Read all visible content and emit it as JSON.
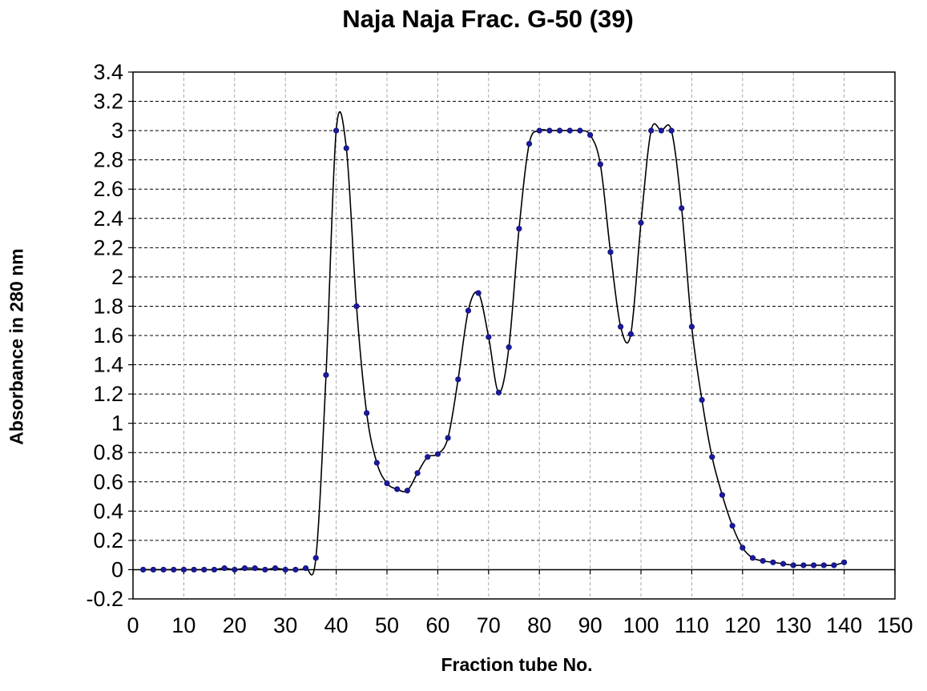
{
  "chart_data": {
    "type": "line",
    "title": "Naja Naja Frac. G-50 (39)",
    "xlabel": "Fraction tube No.",
    "ylabel": "Absorbance in 280 nm",
    "xlim": [
      0,
      150
    ],
    "ylim": [
      -0.2,
      3.4
    ],
    "x_ticks": [
      0,
      10,
      20,
      30,
      40,
      50,
      60,
      70,
      80,
      90,
      100,
      110,
      120,
      130,
      140,
      150
    ],
    "y_ticks": [
      -0.2,
      0,
      0.2,
      0.4,
      0.6,
      0.8,
      1,
      1.2,
      1.4,
      1.6,
      1.8,
      2,
      2.2,
      2.4,
      2.6,
      2.8,
      3,
      3.2,
      3.4
    ],
    "y_tick_labels": [
      "-0.2",
      "0",
      "0.2",
      "0.4",
      "0.6",
      "0.8",
      "1",
      "1.2",
      "1.4",
      "1.6",
      "1.8",
      "2",
      "2.2",
      "2.4",
      "2.6",
      "2.8",
      "3",
      "3.2",
      "3.4"
    ],
    "grid": true,
    "line_color": "#000000",
    "marker_color": "#1a1aa0",
    "series": [
      {
        "x": [
          2,
          4,
          6,
          8,
          10,
          12,
          14,
          16,
          18,
          20,
          22,
          24,
          26,
          28,
          30,
          32,
          34,
          36,
          38,
          40,
          42,
          44,
          46,
          48,
          50,
          52,
          54,
          56,
          58,
          60,
          62,
          64,
          66,
          68,
          70,
          72,
          74,
          76,
          78,
          80,
          82,
          84,
          86,
          88,
          90,
          92,
          94,
          96,
          98,
          100,
          102,
          104,
          106,
          108,
          110,
          112,
          114,
          116,
          118,
          120,
          122,
          124,
          126,
          128,
          130,
          132,
          134,
          136,
          138,
          140
        ],
        "y": [
          0,
          0,
          0,
          0,
          0,
          0,
          0,
          0,
          0.01,
          0,
          0.01,
          0.01,
          0,
          0.01,
          0,
          0,
          0.01,
          0.08,
          1.33,
          3.0,
          2.88,
          1.8,
          1.07,
          0.73,
          0.59,
          0.55,
          0.54,
          0.66,
          0.77,
          0.79,
          0.9,
          1.3,
          1.77,
          1.89,
          1.59,
          1.21,
          1.52,
          2.33,
          2.91,
          3.0,
          3.0,
          3.0,
          3.0,
          3.0,
          2.97,
          2.77,
          2.17,
          1.66,
          1.61,
          2.37,
          3.0,
          3.0,
          3.0,
          2.47,
          1.66,
          1.16,
          0.77,
          0.51,
          0.3,
          0.15,
          0.08,
          0.06,
          0.05,
          0.04,
          0.03,
          0.03,
          0.03,
          0.03,
          0.03,
          0.05
        ]
      }
    ]
  }
}
